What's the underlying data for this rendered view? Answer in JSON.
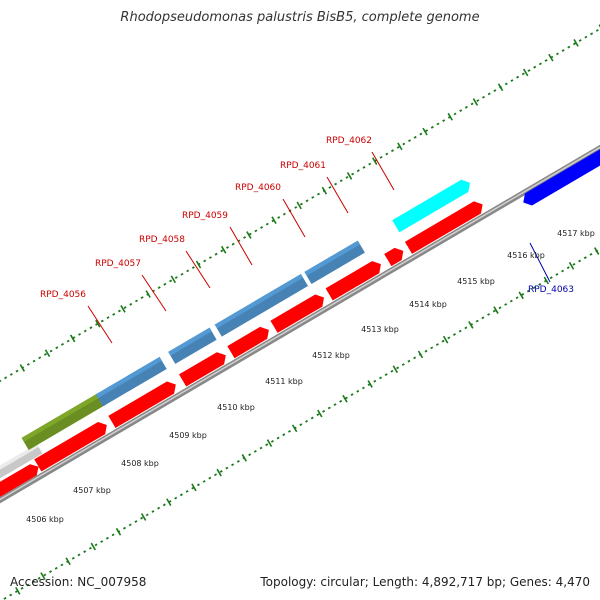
{
  "title": "Rhodopseudomonas palustris BisB5, complete genome",
  "footer": {
    "accession": "Accession: NC_007958",
    "stats": "Topology: circular; Length: 4,892,717 bp; Genes: 4,470"
  },
  "colors": {
    "forward_cds": "#ff0000",
    "reverse_cds": "#0000ff",
    "blast_hit": "#4682b4",
    "highlight": "#00ffff",
    "olive_feature": "#6b8e23",
    "gray_feature": "#808080",
    "light_feature": "#c8c8c8",
    "backbone": "#888888",
    "tick": "#1a7a1a",
    "label_forward": "#cc0000",
    "label_reverse": "#0000aa"
  },
  "kbp_labels": [
    {
      "text": "4506 kbp"
    },
    {
      "text": "4507 kbp"
    },
    {
      "text": "4508 kbp"
    },
    {
      "text": "4509 kbp"
    },
    {
      "text": "4510 kbp"
    },
    {
      "text": "4511 kbp"
    },
    {
      "text": "4512 kbp"
    },
    {
      "text": "4513 kbp"
    },
    {
      "text": "4514 kbp"
    },
    {
      "text": "4515 kbp"
    },
    {
      "text": "4516 kbp"
    },
    {
      "text": "4517 kbp"
    }
  ],
  "gene_labels": [
    {
      "name": "RPD_4056",
      "strand": "forward"
    },
    {
      "name": "RPD_4057",
      "strand": "forward"
    },
    {
      "name": "RPD_4058",
      "strand": "forward"
    },
    {
      "name": "RPD_4059",
      "strand": "forward"
    },
    {
      "name": "RPD_4060",
      "strand": "forward"
    },
    {
      "name": "RPD_4061",
      "strand": "forward"
    },
    {
      "name": "RPD_4062",
      "strand": "forward"
    },
    {
      "name": "RPD_4063",
      "strand": "reverse"
    }
  ]
}
